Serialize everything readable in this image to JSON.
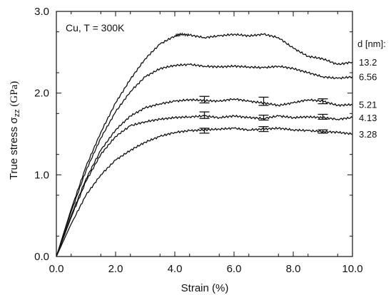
{
  "chart_data": {
    "type": "line",
    "annotation": "Cu, T = 300K",
    "xlabel": "Strain (%)",
    "ylabel_main": "True stress σ",
    "ylabel_sub": "zz",
    "ylabel_unit": " (GPa)",
    "legend_title": "d [nm]:",
    "xlim": [
      0,
      10
    ],
    "ylim": [
      0,
      3
    ],
    "xticks": [
      "0.0",
      "2.0",
      "4.0",
      "6.0",
      "8.0",
      "10.0"
    ],
    "yticks": [
      "0.0",
      "1.0",
      "2.0",
      "3.0"
    ],
    "grid": false,
    "color": "#111111",
    "series": [
      {
        "name": "13.2",
        "x": [
          0,
          0.5,
          1,
          1.5,
          2,
          2.5,
          3,
          3.5,
          4,
          4.2,
          4.5,
          5,
          5.5,
          6,
          6.5,
          7,
          7.5,
          8,
          8.5,
          9,
          9.5,
          10
        ],
        "y": [
          0,
          0.58,
          1.1,
          1.52,
          1.88,
          2.17,
          2.42,
          2.6,
          2.7,
          2.72,
          2.71,
          2.68,
          2.7,
          2.72,
          2.7,
          2.72,
          2.68,
          2.55,
          2.45,
          2.42,
          2.35,
          2.38
        ]
      },
      {
        "name": "6.56",
        "x": [
          0,
          0.5,
          1,
          1.5,
          2,
          2.5,
          3,
          3.5,
          4,
          4.5,
          5,
          5.5,
          6,
          6.5,
          7,
          7.5,
          8,
          8.5,
          9,
          9.5,
          10
        ],
        "y": [
          0,
          0.55,
          1.05,
          1.45,
          1.77,
          2.02,
          2.2,
          2.3,
          2.34,
          2.35,
          2.33,
          2.32,
          2.33,
          2.32,
          2.31,
          2.33,
          2.3,
          2.25,
          2.2,
          2.18,
          2.2
        ]
      },
      {
        "name": "5.21",
        "x": [
          0,
          0.5,
          1,
          1.5,
          2,
          2.5,
          3,
          3.5,
          4,
          4.5,
          5,
          5.5,
          6,
          6.5,
          7,
          7.5,
          8,
          8.5,
          9,
          9.5,
          10
        ],
        "y": [
          0,
          0.5,
          0.95,
          1.3,
          1.55,
          1.72,
          1.82,
          1.87,
          1.9,
          1.92,
          1.91,
          1.9,
          1.93,
          1.9,
          1.88,
          1.85,
          1.88,
          1.92,
          1.9,
          1.85,
          1.86
        ]
      },
      {
        "name": "4.13",
        "x": [
          0,
          0.5,
          1,
          1.5,
          2,
          2.5,
          3,
          3.5,
          4,
          4.5,
          5,
          5.5,
          6,
          6.5,
          7,
          7.5,
          8,
          8.5,
          9,
          9.5,
          10
        ],
        "y": [
          0,
          0.48,
          0.92,
          1.25,
          1.47,
          1.6,
          1.65,
          1.68,
          1.7,
          1.71,
          1.72,
          1.7,
          1.72,
          1.7,
          1.69,
          1.72,
          1.7,
          1.71,
          1.7,
          1.68,
          1.7
        ]
      },
      {
        "name": "3.28",
        "x": [
          0,
          0.5,
          1,
          1.5,
          2,
          2.5,
          3,
          3.5,
          4,
          4.5,
          5,
          5.5,
          6,
          6.5,
          7,
          7.5,
          8,
          8.5,
          9,
          9.5,
          10
        ],
        "y": [
          0,
          0.4,
          0.75,
          1.0,
          1.18,
          1.3,
          1.4,
          1.47,
          1.52,
          1.54,
          1.55,
          1.56,
          1.57,
          1.55,
          1.56,
          1.57,
          1.55,
          1.54,
          1.53,
          1.52,
          1.5
        ]
      }
    ],
    "error_bars": [
      {
        "series": "5.21",
        "x": 5.0,
        "y": 1.92,
        "err": 0.04
      },
      {
        "series": "5.21",
        "x": 7.0,
        "y": 1.9,
        "err": 0.05
      },
      {
        "series": "5.21",
        "x": 9.0,
        "y": 1.9,
        "err": 0.03
      },
      {
        "series": "4.13",
        "x": 5.0,
        "y": 1.73,
        "err": 0.04
      },
      {
        "series": "4.13",
        "x": 7.0,
        "y": 1.7,
        "err": 0.03
      },
      {
        "series": "4.13",
        "x": 9.0,
        "y": 1.71,
        "err": 0.03
      },
      {
        "series": "3.28",
        "x": 5.0,
        "y": 1.54,
        "err": 0.03
      },
      {
        "series": "3.28",
        "x": 7.0,
        "y": 1.56,
        "err": 0.03
      },
      {
        "series": "3.28",
        "x": 9.0,
        "y": 1.53,
        "err": 0.02
      }
    ]
  }
}
